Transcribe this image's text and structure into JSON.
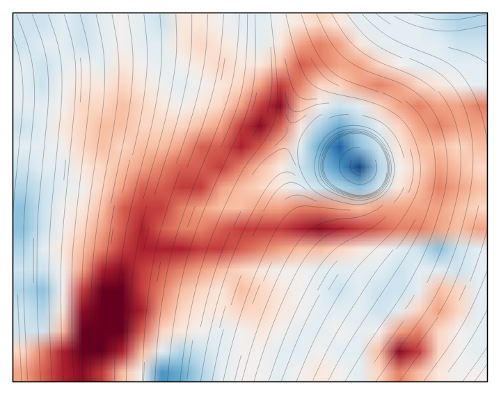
{
  "chart_data": {
    "type": "heatmap",
    "color": "RdBu",
    "tick_labels": false,
    "xlim": [
      0,
      24
    ],
    "ylim": [
      0,
      18
    ],
    "zlim": [
      -10,
      10
    ],
    "cells": [
      [
        -2,
        -2,
        -1,
        -2,
        -1,
        0,
        -1,
        -2,
        1,
        1,
        0,
        -1,
        -1,
        0,
        1,
        2,
        1,
        -1,
        -1,
        -1,
        -1,
        -2,
        -3,
        -3
      ],
      [
        -2,
        -1,
        -1,
        -2,
        -1,
        0,
        -1,
        -1,
        1,
        2,
        1,
        0,
        -1,
        1,
        4,
        5,
        4,
        1,
        -1,
        -1,
        -1,
        -1,
        -2,
        -2
      ],
      [
        -1,
        -2,
        -1,
        0,
        -1,
        1,
        0,
        -1,
        0,
        1,
        2,
        1,
        1,
        3,
        6,
        5,
        4,
        4,
        2,
        0,
        -1,
        -1,
        -1,
        -1
      ],
      [
        -1,
        -2,
        0,
        1,
        1,
        2,
        1,
        0,
        -1,
        0,
        1,
        2,
        4,
        7,
        5,
        2,
        2,
        4,
        5,
        4,
        2,
        1,
        0,
        -1
      ],
      [
        -1,
        -1,
        0,
        2,
        2,
        3,
        2,
        1,
        0,
        1,
        2,
        4,
        7,
        9,
        3,
        0,
        -2,
        -1,
        2,
        4,
        5,
        4,
        4,
        5
      ],
      [
        -2,
        -1,
        1,
        2,
        3,
        3,
        2,
        2,
        2,
        3,
        4,
        7,
        9,
        6,
        1,
        -3,
        -5,
        -3,
        -1,
        2,
        4,
        5,
        4,
        4
      ],
      [
        -1,
        -1,
        0,
        2,
        3,
        2,
        3,
        3,
        4,
        6,
        6,
        8,
        6,
        3,
        -1,
        -5,
        -8,
        -4,
        -2,
        1,
        3,
        3,
        2,
        3
      ],
      [
        -2,
        -1,
        -1,
        1,
        2,
        3,
        4,
        5,
        6,
        6,
        7,
        5,
        3,
        1,
        -2,
        -4,
        -6,
        -9,
        -3,
        0,
        2,
        4,
        3,
        2
      ],
      [
        -3,
        -2,
        -1,
        0,
        2,
        4,
        6,
        6,
        7,
        7,
        4,
        3,
        2,
        1,
        -1,
        -2,
        -3,
        -4,
        -2,
        1,
        3,
        5,
        4,
        3
      ],
      [
        -4,
        -2,
        0,
        1,
        3,
        6,
        7,
        7,
        5,
        4,
        3,
        3,
        4,
        4,
        5,
        5,
        4,
        3,
        4,
        4,
        4,
        4,
        3,
        2
      ],
      [
        -4,
        -2,
        0,
        2,
        4,
        6,
        8,
        6,
        5,
        5,
        6,
        7,
        7,
        7,
        8,
        9,
        8,
        7,
        6,
        5,
        5,
        4,
        3,
        4
      ],
      [
        -3,
        -1,
        1,
        3,
        5,
        7,
        8,
        8,
        8,
        7,
        7,
        6,
        5,
        4,
        3,
        3,
        2,
        1,
        0,
        -1,
        -2,
        -4,
        -2,
        -1
      ],
      [
        -2,
        -2,
        0,
        4,
        8,
        9,
        7,
        6,
        5,
        4,
        3,
        2,
        1,
        0,
        0,
        -1,
        -1,
        -1,
        -1,
        -2,
        -1,
        -1,
        -2,
        -1
      ],
      [
        -3,
        -4,
        0,
        7,
        10,
        10,
        7,
        5,
        3,
        2,
        1,
        3,
        2,
        1,
        0,
        -1,
        -2,
        -1,
        -2,
        -2,
        -1,
        3,
        2,
        -1
      ],
      [
        -2,
        -3,
        1,
        9,
        10,
        10,
        8,
        4,
        2,
        1,
        1,
        2,
        2,
        1,
        0,
        -1,
        -1,
        -1,
        -2,
        -1,
        2,
        4,
        2,
        -1
      ],
      [
        -2,
        -2,
        3,
        10,
        10,
        10,
        6,
        2,
        1,
        0,
        -1,
        0,
        1,
        0,
        -1,
        -1,
        0,
        -1,
        0,
        4,
        5,
        2,
        0,
        -1
      ],
      [
        2,
        5,
        8,
        10,
        10,
        8,
        3,
        -1,
        -3,
        -2,
        -1,
        0,
        0,
        -1,
        -1,
        0,
        -1,
        -1,
        3,
        9,
        7,
        2,
        0,
        -1
      ],
      [
        4,
        6,
        8,
        9,
        7,
        3,
        0,
        -6,
        -5,
        -3,
        -1,
        0,
        0,
        -1,
        0,
        1,
        0,
        -1,
        2,
        5,
        3,
        1,
        0,
        0
      ]
    ],
    "u": [
      [
        0.4,
        0.3,
        0.2,
        0.1,
        0,
        -0.1,
        0.1,
        0.4,
        0.6,
        0.8,
        1,
        1
      ],
      [
        0.1,
        0,
        0,
        -0.1,
        -0.2,
        -0.2,
        0,
        0.5,
        0.9,
        1,
        0.9,
        0.6
      ],
      [
        -0.1,
        -0.1,
        -0.15,
        -0.2,
        -0.3,
        -0.4,
        -0.3,
        0.7,
        1,
        0.75,
        0.5,
        0.3
      ],
      [
        -0.1,
        -0.1,
        -0.2,
        -0.3,
        -0.4,
        -0.5,
        -0.6,
        0.2,
        0.3,
        0.3,
        0.15,
        0
      ],
      [
        -0.1,
        -0.1,
        -0.2,
        -0.3,
        -0.4,
        -0.5,
        -0.5,
        -0.6,
        -1,
        -0.7,
        -0.3,
        -0.2
      ],
      [
        0,
        -0.1,
        -0.15,
        -0.25,
        -0.35,
        -0.45,
        -0.5,
        -0.7,
        -0.9,
        -0.7,
        -0.4,
        -0.3
      ],
      [
        0,
        0,
        -0.1,
        -0.15,
        -0.25,
        -0.35,
        -0.45,
        -0.55,
        -0.6,
        -0.6,
        -0.5,
        -0.4
      ],
      [
        0.05,
        0,
        -0.05,
        -0.1,
        -0.2,
        -0.3,
        -0.4,
        -0.5,
        -0.6,
        -0.6,
        -0.6,
        -0.5
      ],
      [
        0.05,
        0.05,
        0,
        -0.05,
        -0.15,
        -0.25,
        -0.35,
        -0.45,
        -0.55,
        -0.6,
        -0.6,
        -0.6
      ]
    ],
    "v": [
      [
        1,
        1,
        1,
        1,
        1,
        1,
        1,
        1,
        0.8,
        0.5,
        0.2,
        -0.2
      ],
      [
        1,
        1,
        1,
        1,
        1,
        1,
        1,
        0.8,
        0.4,
        0.3,
        0.5,
        0.8
      ],
      [
        1,
        1,
        1,
        1,
        1,
        1,
        1,
        -0.6,
        0,
        0.45,
        0.8,
        1
      ],
      [
        1,
        1,
        1,
        1,
        1,
        1,
        0.4,
        -1,
        -0.3,
        0.9,
        1,
        1
      ],
      [
        1,
        1,
        1,
        1,
        1,
        1,
        0.8,
        -0.3,
        -0.3,
        0.7,
        1,
        1
      ],
      [
        1,
        1,
        1,
        1,
        1,
        1,
        1,
        0.7,
        0.4,
        0.7,
        1,
        1
      ],
      [
        1,
        1,
        1,
        1,
        1,
        1,
        1,
        1,
        0.9,
        0.9,
        1,
        1
      ],
      [
        1,
        1,
        1,
        1,
        1,
        1,
        1,
        1,
        0.9,
        0.8,
        0.8,
        0.9
      ],
      [
        1,
        1,
        1,
        1,
        1,
        1,
        1,
        1,
        0.9,
        0.8,
        0.8,
        0.8
      ]
    ]
  }
}
